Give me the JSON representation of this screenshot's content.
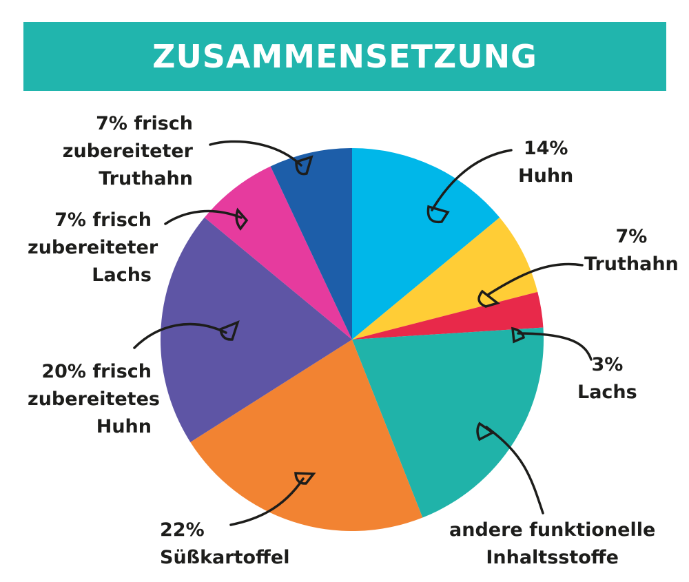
{
  "chart_data": {
    "type": "pie",
    "title": "ZUSAMMENSETZUNG",
    "slices": [
      {
        "label_lines": [
          "14%",
          "Huhn"
        ],
        "value": 14,
        "color": "#00b7e9"
      },
      {
        "label_lines": [
          "7%",
          "Truthahn"
        ],
        "value": 7,
        "color": "#ffcd36"
      },
      {
        "label_lines": [
          "3%",
          "Lachs"
        ],
        "value": 3,
        "color": "#e8294a"
      },
      {
        "label_lines": [
          "andere funktionelle",
          "Inhaltsstoffe"
        ],
        "value": 20,
        "color": "#20b3a9"
      },
      {
        "label_lines": [
          "22%",
          "Süßkartoffel"
        ],
        "value": 22,
        "color": "#f28332"
      },
      {
        "label_lines": [
          "20% frisch",
          "zubereitetes",
          "Huhn"
        ],
        "value": 20,
        "color": "#5e55a5"
      },
      {
        "label_lines": [
          "7% frisch",
          "zubereiteter",
          "Lachs"
        ],
        "value": 7,
        "color": "#e63b9e"
      },
      {
        "label_lines": [
          "7% frisch",
          "zubereiteter",
          "Truthahn"
        ],
        "value": 7,
        "color": "#1d5ea9"
      }
    ]
  }
}
